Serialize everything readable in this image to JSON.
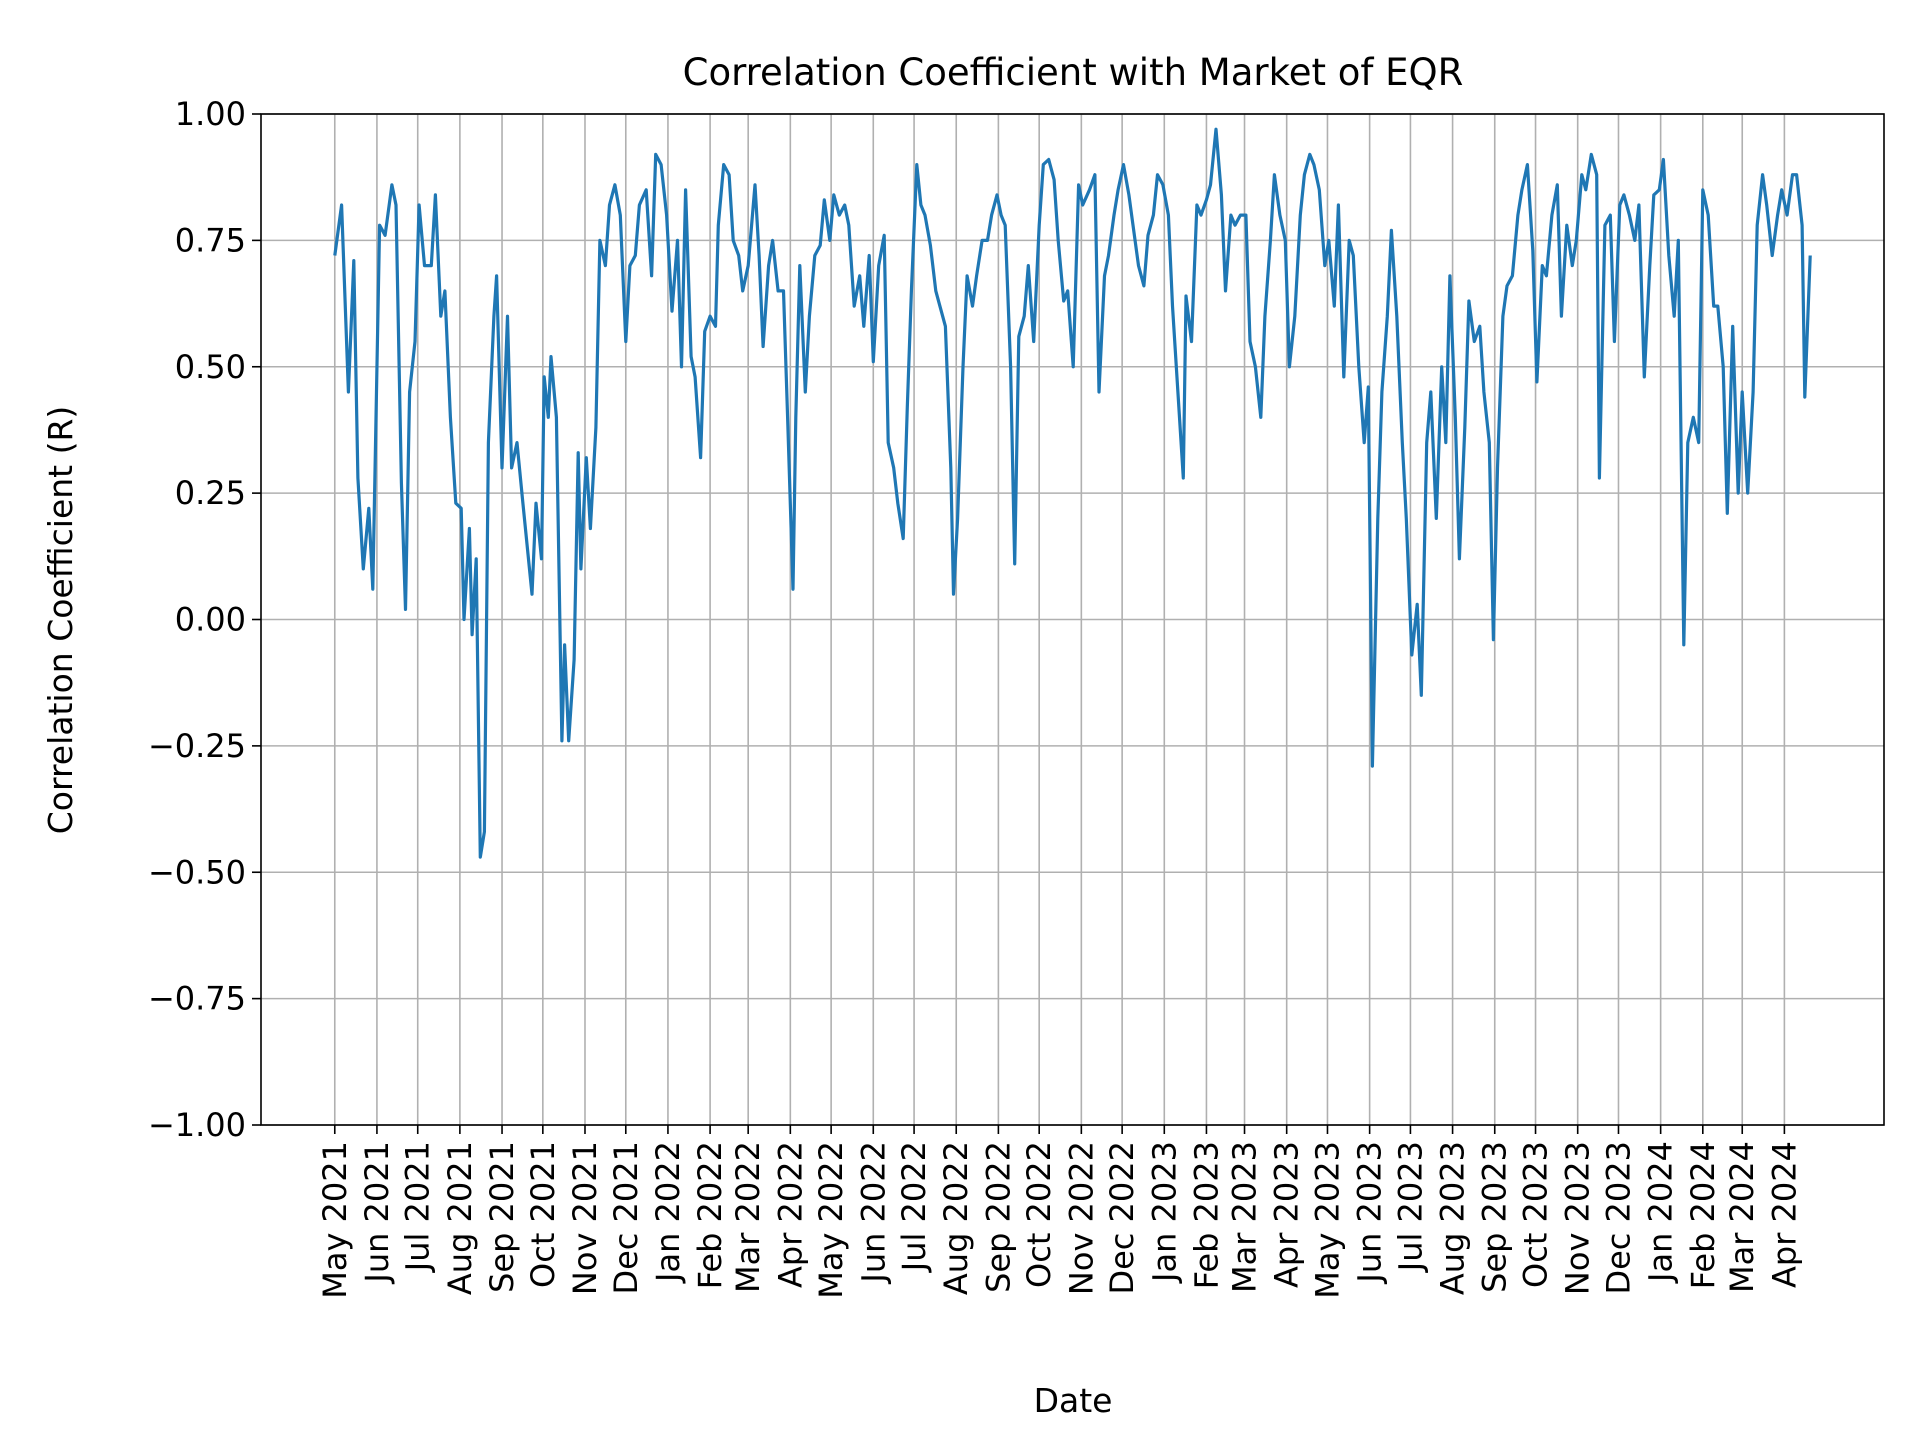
{
  "chart_data": {
    "type": "line",
    "title": "Correlation Coefficient with Market of EQR",
    "xlabel": "Date",
    "ylabel": "Correlation Coefficient (R)",
    "ylim": [
      -1.0,
      1.0
    ],
    "yticks": [
      "−1.00",
      "−0.75",
      "−0.50",
      "−0.25",
      "0.00",
      "0.25",
      "0.50",
      "0.75",
      "1.00"
    ],
    "ytick_values": [
      -1.0,
      -0.75,
      -0.5,
      -0.25,
      0,
      0.25,
      0.5,
      0.75,
      1.0
    ],
    "xticks": [
      "May 2021",
      "Jun 2021",
      "Jul 2021",
      "Aug 2021",
      "Sep 2021",
      "Oct 2021",
      "Nov 2021",
      "Dec 2021",
      "Jan 2022",
      "Feb 2022",
      "Mar 2022",
      "Apr 2022",
      "May 2022",
      "Jun 2022",
      "Jul 2022",
      "Aug 2022",
      "Sep 2022",
      "Oct 2022",
      "Nov 2022",
      "Dec 2022",
      "Jan 2023",
      "Feb 2023",
      "Mar 2023",
      "Apr 2023",
      "May 2023",
      "Jun 2023",
      "Jul 2023",
      "Aug 2023",
      "Sep 2023",
      "Oct 2023",
      "Nov 2023",
      "Dec 2023",
      "Jan 2024",
      "Feb 2024",
      "Mar 2024",
      "Apr 2024"
    ],
    "grid": true,
    "line_color": "#1f77b4",
    "x": [
      "2021-05-01",
      "2021-05-06",
      "2021-05-11",
      "2021-05-15",
      "2021-05-18",
      "2021-05-22",
      "2021-05-26",
      "2021-05-29",
      "2021-06-03",
      "2021-06-07",
      "2021-06-12",
      "2021-06-15",
      "2021-06-19",
      "2021-06-22",
      "2021-06-25",
      "2021-06-29",
      "2021-07-02",
      "2021-07-06",
      "2021-07-11",
      "2021-07-14",
      "2021-07-18",
      "2021-07-21",
      "2021-07-25",
      "2021-07-29",
      "2021-08-02",
      "2021-08-04",
      "2021-08-08",
      "2021-08-10",
      "2021-08-13",
      "2021-08-16",
      "2021-08-19",
      "2021-08-22",
      "2021-08-26",
      "2021-08-28",
      "2021-09-01",
      "2021-09-05",
      "2021-09-08",
      "2021-09-12",
      "2021-09-16",
      "2021-09-23",
      "2021-09-26",
      "2021-09-30",
      "2021-10-02",
      "2021-10-05",
      "2021-10-07",
      "2021-10-11",
      "2021-10-15",
      "2021-10-17",
      "2021-10-20",
      "2021-10-24",
      "2021-10-27",
      "2021-10-29",
      "2021-11-02",
      "2021-11-05",
      "2021-11-09",
      "2021-11-12",
      "2021-11-16",
      "2021-11-19",
      "2021-11-23",
      "2021-11-27",
      "2021-12-01",
      "2021-12-04",
      "2021-12-08",
      "2021-12-11",
      "2021-12-16",
      "2021-12-20",
      "2021-12-23",
      "2021-12-27",
      "2021-12-31",
      "2022-01-04",
      "2022-01-08",
      "2022-01-11",
      "2022-01-14",
      "2022-01-18",
      "2022-01-21",
      "2022-01-25",
      "2022-01-28",
      "2022-02-01",
      "2022-02-05",
      "2022-02-07",
      "2022-02-11",
      "2022-02-15",
      "2022-02-18",
      "2022-02-22",
      "2022-02-25",
      "2022-03-01",
      "2022-03-06",
      "2022-03-09",
      "2022-03-12",
      "2022-03-16",
      "2022-03-19",
      "2022-03-23",
      "2022-03-27",
      "2022-03-30",
      "2022-04-03",
      "2022-04-05",
      "2022-04-08",
      "2022-04-12",
      "2022-04-15",
      "2022-04-19",
      "2022-04-23",
      "2022-04-26",
      "2022-04-30",
      "2022-05-03",
      "2022-05-07",
      "2022-05-11",
      "2022-05-14",
      "2022-05-18",
      "2022-05-22",
      "2022-05-25",
      "2022-05-29",
      "2022-06-01",
      "2022-06-05",
      "2022-06-09",
      "2022-06-12",
      "2022-06-16",
      "2022-06-19",
      "2022-06-23",
      "2022-06-26",
      "2022-06-29",
      "2022-07-03",
      "2022-07-06",
      "2022-07-09",
      "2022-07-13",
      "2022-07-17",
      "2022-07-20",
      "2022-07-24",
      "2022-07-28",
      "2022-07-30",
      "2022-08-02",
      "2022-08-06",
      "2022-08-09",
      "2022-08-13",
      "2022-08-16",
      "2022-08-20",
      "2022-08-24",
      "2022-08-27",
      "2022-08-31",
      "2022-09-03",
      "2022-09-06",
      "2022-09-10",
      "2022-09-13",
      "2022-09-16",
      "2022-09-20",
      "2022-09-23",
      "2022-09-27",
      "2022-10-01",
      "2022-10-04",
      "2022-10-08",
      "2022-10-12",
      "2022-10-15",
      "2022-10-19",
      "2022-10-22",
      "2022-10-26",
      "2022-10-30",
      "2022-11-02",
      "2022-11-07",
      "2022-11-11",
      "2022-11-14",
      "2022-11-18",
      "2022-11-21",
      "2022-11-25",
      "2022-11-28",
      "2022-12-02",
      "2022-12-06",
      "2022-12-09",
      "2022-12-13",
      "2022-12-17",
      "2022-12-20",
      "2022-12-24",
      "2022-12-27",
      "2022-12-31",
      "2023-01-04",
      "2023-01-07",
      "2023-01-11",
      "2023-01-15",
      "2023-01-17",
      "2023-01-21",
      "2023-01-25",
      "2023-01-28",
      "2023-02-01",
      "2023-02-04",
      "2023-02-08",
      "2023-02-12",
      "2023-02-15",
      "2023-02-19",
      "2023-02-22",
      "2023-02-26",
      "2023-03-02",
      "2023-03-05",
      "2023-03-09",
      "2023-03-13",
      "2023-03-16",
      "2023-03-20",
      "2023-03-23",
      "2023-03-27",
      "2023-03-31",
      "2023-04-03",
      "2023-04-07",
      "2023-04-11",
      "2023-04-14",
      "2023-04-18",
      "2023-04-21",
      "2023-04-25",
      "2023-04-29",
      "2023-05-02",
      "2023-05-06",
      "2023-05-09",
      "2023-05-13",
      "2023-05-17",
      "2023-05-20",
      "2023-05-24",
      "2023-05-28",
      "2023-05-31",
      "2023-06-03",
      "2023-06-07",
      "2023-06-10",
      "2023-06-14",
      "2023-06-17",
      "2023-06-21",
      "2023-06-25",
      "2023-06-28",
      "2023-07-02",
      "2023-07-06",
      "2023-07-09",
      "2023-07-13",
      "2023-07-16",
      "2023-07-20",
      "2023-07-24",
      "2023-07-27",
      "2023-07-30",
      "2023-08-03",
      "2023-08-06",
      "2023-08-10",
      "2023-08-13",
      "2023-08-17",
      "2023-08-21",
      "2023-08-24",
      "2023-08-28",
      "2023-08-31",
      "2023-09-03",
      "2023-09-07",
      "2023-09-10",
      "2023-09-14",
      "2023-09-18",
      "2023-09-21",
      "2023-09-25",
      "2023-09-29",
      "2023-10-02",
      "2023-10-06",
      "2023-10-09",
      "2023-10-13",
      "2023-10-17",
      "2023-10-20",
      "2023-10-24",
      "2023-10-28",
      "2023-10-31",
      "2023-11-04",
      "2023-11-07",
      "2023-11-11",
      "2023-11-15",
      "2023-11-17",
      "2023-11-21",
      "2023-11-25",
      "2023-11-28",
      "2023-12-02",
      "2023-12-05",
      "2023-12-09",
      "2023-12-13",
      "2023-12-16",
      "2023-12-20",
      "2023-12-24",
      "2023-12-27",
      "2023-12-31",
      "2024-01-03",
      "2024-01-07",
      "2024-01-11",
      "2024-01-14",
      "2024-01-18",
      "2024-01-21",
      "2024-01-25",
      "2024-01-29",
      "2024-02-01",
      "2024-02-05",
      "2024-02-09",
      "2024-02-12",
      "2024-02-16",
      "2024-02-19",
      "2024-02-23",
      "2024-02-27",
      "2024-03-01",
      "2024-03-05",
      "2024-03-09",
      "2024-03-12",
      "2024-03-16",
      "2024-03-19",
      "2024-03-23",
      "2024-03-27",
      "2024-03-30",
      "2024-04-03",
      "2024-04-07",
      "2024-04-10",
      "2024-04-14",
      "2024-04-16",
      "2024-04-20"
    ],
    "y": [
      0.72,
      0.82,
      0.45,
      0.71,
      0.28,
      0.1,
      0.22,
      0.06,
      0.78,
      0.76,
      0.86,
      0.82,
      0.27,
      0.02,
      0.45,
      0.55,
      0.82,
      0.7,
      0.7,
      0.84,
      0.6,
      0.65,
      0.4,
      0.23,
      0.22,
      0.0,
      0.18,
      -0.03,
      0.12,
      -0.47,
      -0.42,
      0.35,
      0.6,
      0.68,
      0.3,
      0.6,
      0.3,
      0.35,
      0.24,
      0.05,
      0.23,
      0.12,
      0.48,
      0.4,
      0.52,
      0.4,
      -0.24,
      -0.05,
      -0.24,
      -0.08,
      0.33,
      0.1,
      0.32,
      0.18,
      0.38,
      0.75,
      0.7,
      0.82,
      0.86,
      0.8,
      0.55,
      0.7,
      0.72,
      0.82,
      0.85,
      0.68,
      0.92,
      0.9,
      0.8,
      0.61,
      0.75,
      0.5,
      0.85,
      0.52,
      0.48,
      0.32,
      0.57,
      0.6,
      0.58,
      0.78,
      0.9,
      0.88,
      0.75,
      0.72,
      0.65,
      0.7,
      0.86,
      0.72,
      0.54,
      0.7,
      0.75,
      0.65,
      0.65,
      0.4,
      0.06,
      0.4,
      0.7,
      0.45,
      0.6,
      0.72,
      0.74,
      0.83,
      0.75,
      0.84,
      0.8,
      0.82,
      0.78,
      0.62,
      0.68,
      0.58,
      0.72,
      0.51,
      0.7,
      0.76,
      0.35,
      0.3,
      0.23,
      0.16,
      0.42,
      0.65,
      0.9,
      0.82,
      0.8,
      0.74,
      0.65,
      0.62,
      0.58,
      0.3,
      0.05,
      0.2,
      0.5,
      0.68,
      0.62,
      0.68,
      0.75,
      0.75,
      0.8,
      0.84,
      0.8,
      0.78,
      0.5,
      0.11,
      0.56,
      0.6,
      0.7,
      0.55,
      0.78,
      0.9,
      0.91,
      0.87,
      0.75,
      0.63,
      0.65,
      0.5,
      0.86,
      0.82,
      0.85,
      0.88,
      0.45,
      0.68,
      0.72,
      0.8,
      0.85,
      0.9,
      0.84,
      0.78,
      0.7,
      0.66,
      0.76,
      0.8,
      0.88,
      0.86,
      0.8,
      0.62,
      0.45,
      0.28,
      0.64,
      0.55,
      0.82,
      0.8,
      0.83,
      0.86,
      0.97,
      0.84,
      0.65,
      0.8,
      0.78,
      0.8,
      0.8,
      0.55,
      0.5,
      0.4,
      0.6,
      0.75,
      0.88,
      0.8,
      0.75,
      0.5,
      0.6,
      0.8,
      0.88,
      0.92,
      0.9,
      0.85,
      0.7,
      0.75,
      0.62,
      0.82,
      0.48,
      0.75,
      0.72,
      0.5,
      0.35,
      0.46,
      -0.29,
      0.2,
      0.45,
      0.6,
      0.77,
      0.6,
      0.35,
      0.2,
      -0.07,
      0.03,
      -0.15,
      0.35,
      0.45,
      0.2,
      0.5,
      0.35,
      0.68,
      0.4,
      0.12,
      0.38,
      0.63,
      0.55,
      0.58,
      0.45,
      0.35,
      -0.04,
      0.3,
      0.6,
      0.66,
      0.68,
      0.8,
      0.85,
      0.9,
      0.73,
      0.47,
      0.7,
      0.68,
      0.8,
      0.86,
      0.6,
      0.78,
      0.7,
      0.75,
      0.88,
      0.85,
      0.92,
      0.88,
      0.28,
      0.78,
      0.8,
      0.55,
      0.82,
      0.84,
      0.8,
      0.75,
      0.82,
      0.48,
      0.7,
      0.84,
      0.85,
      0.91,
      0.72,
      0.6,
      0.75,
      -0.05,
      0.35,
      0.4,
      0.35,
      0.85,
      0.8,
      0.62,
      0.62,
      0.5,
      0.21,
      0.58,
      0.25,
      0.45,
      0.25,
      0.45,
      0.78,
      0.88,
      0.82,
      0.72,
      0.8,
      0.85,
      0.8,
      0.88,
      0.88,
      0.78,
      0.44,
      0.72
    ]
  }
}
